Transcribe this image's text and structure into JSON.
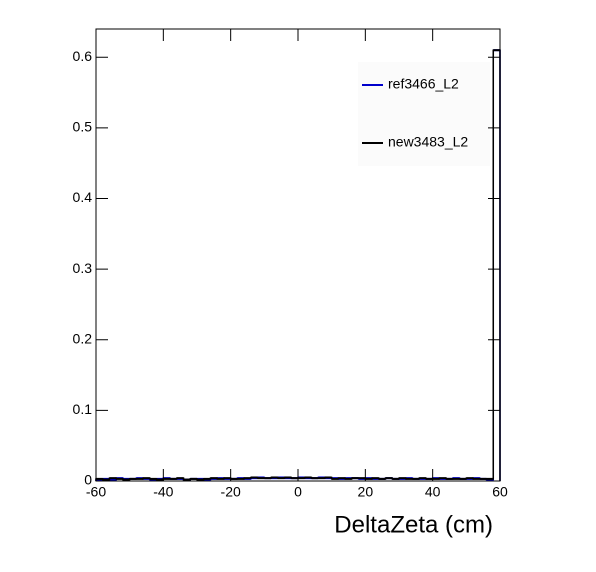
{
  "chart_data": {
    "type": "histogram",
    "x_label": "DeltaZeta (cm)",
    "bins": [
      -60,
      -58,
      -56,
      -54,
      -52,
      -50,
      -48,
      -46,
      -44,
      -42,
      -40,
      -38,
      -36,
      -34,
      -32,
      -30,
      -28,
      -26,
      -24,
      -22,
      -20,
      -18,
      -16,
      -14,
      -12,
      -10,
      -8,
      -6,
      -4,
      -2,
      0,
      2,
      4,
      6,
      8,
      10,
      12,
      14,
      16,
      18,
      20,
      22,
      24,
      26,
      28,
      30,
      32,
      34,
      36,
      38,
      40,
      42,
      44,
      46,
      48,
      50,
      52,
      54,
      56,
      58,
      60
    ],
    "series": [
      {
        "name": "ref3466_L2",
        "color": "#0000cc",
        "values": [
          0.002,
          0.003,
          0.002,
          0.004,
          0.003,
          0.003,
          0.004,
          0.003,
          0.002,
          0.003,
          0.004,
          0.003,
          0.003,
          0.002,
          0.003,
          0.003,
          0.002,
          0.003,
          0.004,
          0.003,
          0.003,
          0.004,
          0.003,
          0.004,
          0.005,
          0.004,
          0.004,
          0.005,
          0.004,
          0.004,
          0.005,
          0.004,
          0.004,
          0.005,
          0.004,
          0.004,
          0.003,
          0.004,
          0.004,
          0.003,
          0.004,
          0.003,
          0.003,
          0.004,
          0.003,
          0.003,
          0.004,
          0.003,
          0.003,
          0.003,
          0.004,
          0.003,
          0.003,
          0.004,
          0.003,
          0.003,
          0.004,
          0.003,
          0.002,
          0.61
        ]
      },
      {
        "name": "new3483_L2",
        "color": "#000000",
        "values": [
          0.003,
          0.002,
          0.004,
          0.003,
          0.002,
          0.003,
          0.003,
          0.004,
          0.003,
          0.002,
          0.003,
          0.003,
          0.004,
          0.002,
          0.003,
          0.002,
          0.003,
          0.004,
          0.003,
          0.004,
          0.003,
          0.003,
          0.004,
          0.005,
          0.004,
          0.004,
          0.005,
          0.004,
          0.005,
          0.004,
          0.004,
          0.005,
          0.004,
          0.004,
          0.005,
          0.003,
          0.004,
          0.003,
          0.004,
          0.004,
          0.003,
          0.004,
          0.003,
          0.004,
          0.003,
          0.004,
          0.003,
          0.003,
          0.004,
          0.003,
          0.003,
          0.004,
          0.003,
          0.003,
          0.003,
          0.004,
          0.003,
          0.003,
          0.003,
          0.61
        ]
      }
    ],
    "xlim": [
      -60,
      60
    ],
    "ylim": [
      0,
      0.64
    ],
    "xticks": [
      -60,
      -40,
      -20,
      0,
      20,
      40,
      60
    ],
    "yticks": [
      0,
      0.1,
      0.2,
      0.3,
      0.4,
      0.5,
      0.6
    ]
  }
}
